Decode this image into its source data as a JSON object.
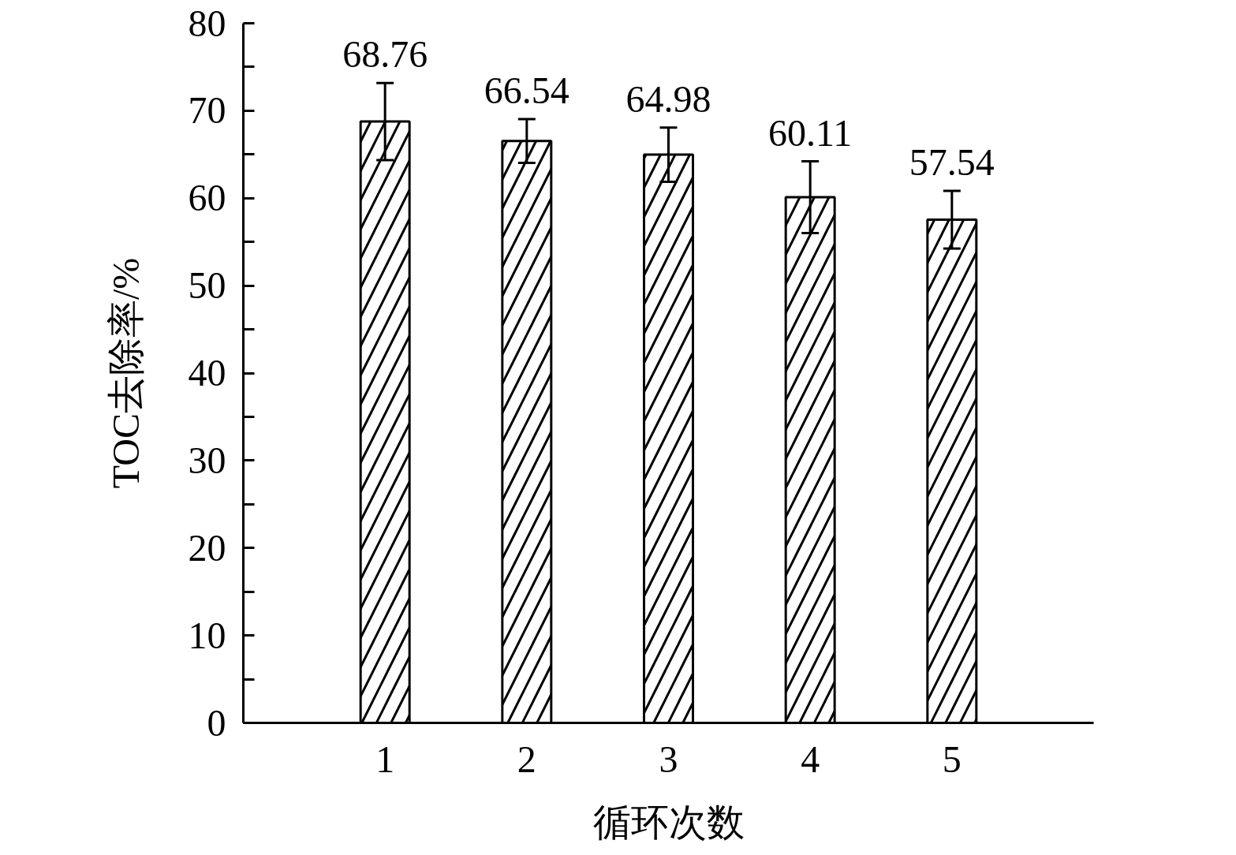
{
  "chart_data": {
    "type": "bar",
    "xlabel": "循环次数",
    "ylabel": "TOC去除率/%",
    "categories": [
      "1",
      "2",
      "3",
      "4",
      "5"
    ],
    "values": [
      68.76,
      66.54,
      64.98,
      60.11,
      57.54
    ],
    "errors": [
      4.4,
      2.5,
      3.1,
      4.1,
      3.3
    ],
    "color": "#000000",
    "data_labels": true,
    "ylim": [
      0,
      80
    ],
    "yticks": [
      0,
      {
        "value": 5,
        "label": null
      },
      10,
      {
        "value": 15,
        "label": null
      },
      20,
      {
        "value": 25,
        "label": null
      },
      30,
      {
        "value": 35,
        "label": null
      },
      40,
      {
        "value": 45,
        "label": null
      },
      50,
      {
        "value": 55,
        "label": null
      },
      60,
      {
        "value": 65,
        "label": null
      },
      70,
      {
        "value": 75,
        "label": null
      },
      80
    ]
  }
}
